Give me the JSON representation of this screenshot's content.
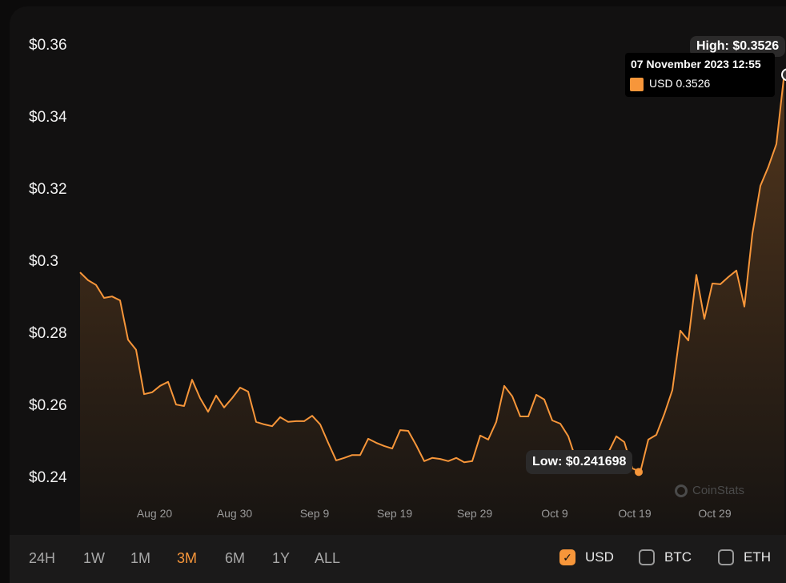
{
  "chart_data": {
    "type": "area",
    "currency": "USD",
    "ylim": [
      0.24,
      0.36
    ],
    "y_ticks": [
      "$0.36",
      "$0.34",
      "$0.32",
      "$0.3",
      "$0.28",
      "$0.26",
      "$0.24"
    ],
    "y_tick_values": [
      0.36,
      0.34,
      0.32,
      0.3,
      0.28,
      0.26,
      0.24
    ],
    "x_ticks": [
      "Aug 20",
      "Aug 30",
      "Sep 9",
      "Sep 19",
      "Sep 29",
      "Oct 9",
      "Oct 19",
      "Oct 29"
    ],
    "line_color": "#f7963a",
    "grid": false,
    "points": [
      [
        "Aug 11",
        0.2971
      ],
      [
        "Aug 12",
        0.2949
      ],
      [
        "Aug 13",
        0.2936
      ],
      [
        "Aug 14",
        0.29
      ],
      [
        "Aug 15",
        0.2904
      ],
      [
        "Aug 16",
        0.2893
      ],
      [
        "Aug 17",
        0.2784
      ],
      [
        "Aug 18",
        0.2756
      ],
      [
        "Aug 19",
        0.2633
      ],
      [
        "Aug 20",
        0.2638
      ],
      [
        "Aug 21",
        0.2656
      ],
      [
        "Aug 22",
        0.2667
      ],
      [
        "Aug 23",
        0.2604
      ],
      [
        "Aug 24",
        0.26
      ],
      [
        "Aug 25",
        0.2673
      ],
      [
        "Aug 26",
        0.2622
      ],
      [
        "Aug 27",
        0.2584
      ],
      [
        "Aug 28",
        0.2629
      ],
      [
        "Aug 29",
        0.2596
      ],
      [
        "Aug 30",
        0.2622
      ],
      [
        "Aug 31",
        0.2651
      ],
      [
        "Sep 1",
        0.264
      ],
      [
        "Sep 2",
        0.2556
      ],
      [
        "Sep 3",
        0.2549
      ],
      [
        "Sep 4",
        0.2544
      ],
      [
        "Sep 5",
        0.2569
      ],
      [
        "Sep 6",
        0.2556
      ],
      [
        "Sep 7",
        0.2558
      ],
      [
        "Sep 8",
        0.2558
      ],
      [
        "Sep 9",
        0.2573
      ],
      [
        "Sep 10",
        0.2549
      ],
      [
        "Sep 11",
        0.2498
      ],
      [
        "Sep 12",
        0.2449
      ],
      [
        "Sep 13",
        0.2456
      ],
      [
        "Sep 14",
        0.2464
      ],
      [
        "Sep 15",
        0.2464
      ],
      [
        "Sep 16",
        0.2509
      ],
      [
        "Sep 17",
        0.2498
      ],
      [
        "Sep 18",
        0.2489
      ],
      [
        "Sep 19",
        0.2482
      ],
      [
        "Sep 20",
        0.2533
      ],
      [
        "Sep 21",
        0.2531
      ],
      [
        "Sep 22",
        0.2491
      ],
      [
        "Sep 23",
        0.2447
      ],
      [
        "Sep 24",
        0.2456
      ],
      [
        "Sep 25",
        0.2453
      ],
      [
        "Sep 26",
        0.2447
      ],
      [
        "Sep 27",
        0.2456
      ],
      [
        "Sep 28",
        0.2444
      ],
      [
        "Sep 29",
        0.2447
      ],
      [
        "Sep 30",
        0.2518
      ],
      [
        "Oct 1",
        0.2507
      ],
      [
        "Oct 2",
        0.2556
      ],
      [
        "Oct 3",
        0.2656
      ],
      [
        "Oct 4",
        0.2627
      ],
      [
        "Oct 5",
        0.2571
      ],
      [
        "Oct 6",
        0.2571
      ],
      [
        "Oct 7",
        0.2631
      ],
      [
        "Oct 8",
        0.2618
      ],
      [
        "Oct 9",
        0.256
      ],
      [
        "Oct 10",
        0.2551
      ],
      [
        "Oct 11",
        0.2516
      ],
      [
        "Oct 12",
        0.2449
      ],
      [
        "Oct 13",
        0.2438
      ],
      [
        "Oct 14",
        0.2438
      ],
      [
        "Oct 15",
        0.2449
      ],
      [
        "Oct 16",
        0.2471
      ],
      [
        "Oct 17",
        0.2516
      ],
      [
        "Oct 18",
        0.25
      ],
      [
        "Oct 19",
        0.2427
      ],
      [
        "Oct 20",
        0.2417
      ],
      [
        "Oct 21",
        0.2507
      ],
      [
        "Oct 22",
        0.252
      ],
      [
        "Oct 23",
        0.2578
      ],
      [
        "Oct 24",
        0.2644
      ],
      [
        "Oct 25",
        0.2809
      ],
      [
        "Oct 26",
        0.2782
      ],
      [
        "Oct 27",
        0.2964
      ],
      [
        "Oct 28",
        0.2842
      ],
      [
        "Oct 29",
        0.294
      ],
      [
        "Oct 30",
        0.2938
      ],
      [
        "Oct 31",
        0.2958
      ],
      [
        "Nov 1",
        0.2976
      ],
      [
        "Nov 2",
        0.2876
      ],
      [
        "Nov 3",
        0.3078
      ],
      [
        "Nov 4",
        0.3211
      ],
      [
        "Nov 5",
        0.3264
      ],
      [
        "Nov 6",
        0.3327
      ],
      [
        "Nov 7",
        0.3526
      ]
    ],
    "high_label": "High: $0.3526",
    "low_label": "Low: $0.241698",
    "tooltip": {
      "date": "07 November 2023 12:55",
      "value": "USD 0.3526"
    }
  },
  "watermark": "CoinStats",
  "ranges": [
    {
      "label": "24H",
      "active": false
    },
    {
      "label": "1W",
      "active": false
    },
    {
      "label": "1M",
      "active": false
    },
    {
      "label": "3M",
      "active": true
    },
    {
      "label": "6M",
      "active": false
    },
    {
      "label": "1Y",
      "active": false
    },
    {
      "label": "ALL",
      "active": false
    }
  ],
  "currencies": [
    {
      "label": "USD",
      "checked": true
    },
    {
      "label": "BTC",
      "checked": false
    },
    {
      "label": "ETH",
      "checked": false
    }
  ]
}
